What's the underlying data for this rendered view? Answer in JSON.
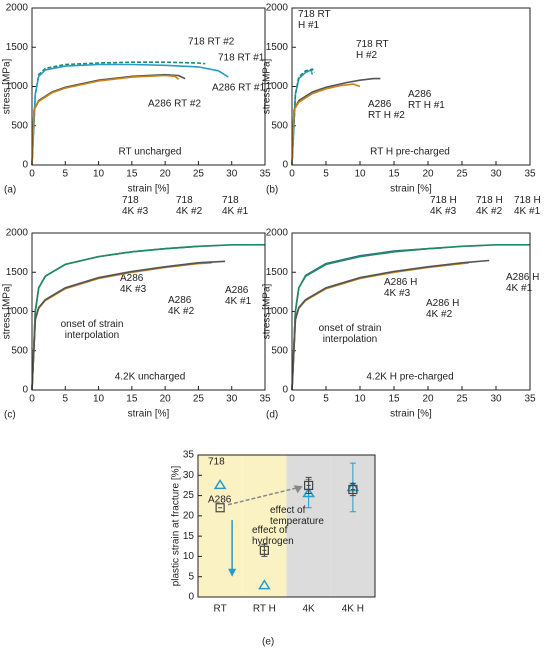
{
  "chart_data": [
    {
      "type": "line",
      "label": "(a)",
      "title": "RT uncharged",
      "x_label": "strain [%]",
      "y_label": "stress [MPa]",
      "xlim": [
        0,
        35
      ],
      "xticks": [
        0,
        5,
        10,
        15,
        20,
        25,
        30,
        35
      ],
      "ylim": [
        0,
        2000
      ],
      "yticks": [
        0,
        500,
        1000,
        1500,
        2000
      ],
      "series": [
        {
          "name": "718 RT #2",
          "color": "#1a8a6a",
          "linestyle": "dashed",
          "x": [
            0,
            0.5,
            1,
            2,
            5,
            10,
            15,
            20,
            25,
            26
          ],
          "values": [
            0,
            900,
            1150,
            1230,
            1280,
            1300,
            1310,
            1310,
            1300,
            1290
          ]
        },
        {
          "name": "718 RT #1",
          "color": "#2a9ac8",
          "linestyle": "solid",
          "x": [
            0,
            0.5,
            1,
            2,
            5,
            10,
            15,
            20,
            25,
            28,
            29.5
          ],
          "values": [
            0,
            900,
            1130,
            1210,
            1260,
            1280,
            1280,
            1270,
            1250,
            1200,
            1120
          ]
        },
        {
          "name": "A286 RT #1",
          "color": "#555555",
          "linestyle": "solid",
          "x": [
            0,
            0.3,
            1,
            3,
            5,
            10,
            15,
            20,
            22,
            23
          ],
          "values": [
            0,
            700,
            820,
            930,
            990,
            1080,
            1130,
            1150,
            1140,
            1100
          ]
        },
        {
          "name": "A286 RT #2",
          "color": "#c8841a",
          "linestyle": "solid",
          "x": [
            0,
            0.3,
            1,
            3,
            5,
            10,
            15,
            20,
            21.5,
            22
          ],
          "values": [
            0,
            700,
            810,
            920,
            980,
            1070,
            1120,
            1140,
            1130,
            1090
          ]
        }
      ]
    },
    {
      "type": "line",
      "label": "(b)",
      "title": "RT H pre-charged",
      "x_label": "strain [%]",
      "y_label": "stress [MPa]",
      "xlim": [
        0,
        35
      ],
      "xticks": [
        0,
        5,
        10,
        15,
        20,
        25,
        30,
        35
      ],
      "ylim": [
        0,
        2000
      ],
      "yticks": [
        0,
        500,
        1000,
        1500,
        2000
      ],
      "series": [
        {
          "name": "718 RT H #1",
          "color": "#2a9ac8",
          "linestyle": "solid",
          "x": [
            0,
            0.5,
            1,
            2,
            2.8,
            3
          ],
          "values": [
            0,
            900,
            1100,
            1180,
            1210,
            1150
          ]
        },
        {
          "name": "718 RT H #2",
          "color": "#1a8a6a",
          "linestyle": "dashed",
          "x": [
            0,
            0.5,
            1,
            2,
            3,
            3.3
          ],
          "values": [
            0,
            900,
            1120,
            1200,
            1220,
            1180
          ]
        },
        {
          "name": "A286 RT H #1",
          "color": "#555555",
          "linestyle": "solid",
          "x": [
            0,
            0.3,
            1,
            3,
            5,
            8,
            10,
            12,
            13
          ],
          "values": [
            0,
            700,
            820,
            930,
            990,
            1050,
            1080,
            1100,
            1100
          ]
        },
        {
          "name": "A286 RT H #2",
          "color": "#c8841a",
          "linestyle": "solid",
          "x": [
            0,
            0.3,
            1,
            3,
            5,
            7,
            9,
            10
          ],
          "values": [
            0,
            700,
            800,
            910,
            970,
            1010,
            1030,
            1000
          ]
        }
      ]
    },
    {
      "type": "line",
      "label": "(c)",
      "title": "4.2K uncharged",
      "x_label": "strain [%]",
      "y_label": "stress [MPa]",
      "xlim": [
        0,
        35
      ],
      "xticks": [
        0,
        5,
        10,
        15,
        20,
        25,
        30,
        35
      ],
      "ylim": [
        0,
        2000
      ],
      "yticks": [
        0,
        500,
        1000,
        1500,
        2000
      ],
      "annotations": [
        [
          "onset of strain",
          "interpolation"
        ]
      ],
      "series": [
        {
          "name": "718 4K #3",
          "color": "#1a5aa0",
          "linestyle": "solid",
          "x": [
            0,
            0.5,
            1,
            2,
            5,
            10,
            15,
            20,
            25
          ],
          "values": [
            0,
            1000,
            1300,
            1450,
            1600,
            1700,
            1760,
            1800,
            1830
          ]
        },
        {
          "name": "718 4K #2",
          "color": "#d4c020",
          "linestyle": "solid",
          "x": [
            0,
            0.5,
            1,
            2,
            5,
            10,
            15,
            20,
            25,
            28
          ],
          "values": [
            0,
            1000,
            1300,
            1450,
            1600,
            1700,
            1760,
            1800,
            1830,
            1840
          ]
        },
        {
          "name": "718 4K #1",
          "color": "#1a8a6a",
          "linestyle": "solid",
          "x": [
            0,
            0.5,
            1,
            2,
            5,
            10,
            15,
            20,
            25,
            30,
            35
          ],
          "values": [
            0,
            1000,
            1300,
            1450,
            1600,
            1700,
            1760,
            1800,
            1830,
            1850,
            1850
          ]
        },
        {
          "name": "A286 4K #3",
          "color": "#3aa8d8",
          "linestyle": "solid",
          "x": [
            0,
            0.5,
            1,
            2,
            5,
            10,
            15,
            20,
            25,
            27
          ],
          "values": [
            0,
            900,
            1050,
            1150,
            1300,
            1430,
            1510,
            1570,
            1620,
            1630
          ]
        },
        {
          "name": "A286 4K #2",
          "color": "#c8841a",
          "linestyle": "solid",
          "x": [
            0,
            0.5,
            1,
            2,
            5,
            10,
            15,
            20,
            25,
            27
          ],
          "values": [
            0,
            900,
            1040,
            1140,
            1290,
            1420,
            1500,
            1560,
            1610,
            1620
          ]
        },
        {
          "name": "A286 4K #1",
          "color": "#555555",
          "linestyle": "solid",
          "x": [
            0,
            0.5,
            1,
            2,
            5,
            10,
            15,
            20,
            25,
            29
          ],
          "values": [
            0,
            900,
            1050,
            1150,
            1300,
            1430,
            1510,
            1570,
            1620,
            1640
          ]
        }
      ]
    },
    {
      "type": "line",
      "label": "(d)",
      "title": "4.2K H pre-charged",
      "x_label": "strain [%]",
      "y_label": "stress [MPa]",
      "xlim": [
        0,
        35
      ],
      "xticks": [
        0,
        5,
        10,
        15,
        20,
        25,
        30,
        35
      ],
      "ylim": [
        0,
        2000
      ],
      "yticks": [
        0,
        500,
        1000,
        1500,
        2000
      ],
      "annotations": [
        [
          "onset of strain",
          "interpolation"
        ]
      ],
      "series": [
        {
          "name": "718 H 4K #3",
          "color": "#1a5aa0",
          "linestyle": "solid",
          "x": [
            0,
            0.5,
            1,
            2,
            5,
            10,
            15,
            20,
            22
          ],
          "values": [
            0,
            1000,
            1300,
            1460,
            1610,
            1710,
            1770,
            1800,
            1810
          ]
        },
        {
          "name": "718 H 4K #2",
          "color": "#d4c020",
          "linestyle": "solid",
          "x": [
            0,
            0.5,
            1,
            2,
            5,
            10,
            15,
            20,
            25,
            28
          ],
          "values": [
            0,
            1000,
            1300,
            1450,
            1600,
            1700,
            1760,
            1800,
            1830,
            1840
          ]
        },
        {
          "name": "718 H 4K #1",
          "color": "#1a8a6a",
          "linestyle": "solid",
          "x": [
            0,
            0.5,
            1,
            2,
            5,
            10,
            15,
            20,
            25,
            30,
            35
          ],
          "values": [
            0,
            1000,
            1300,
            1450,
            1600,
            1700,
            1760,
            1800,
            1830,
            1850,
            1850
          ]
        },
        {
          "name": "A286 H 4K #3",
          "color": "#3aa8d8",
          "linestyle": "solid",
          "x": [
            0,
            0.5,
            1,
            2,
            5,
            10,
            15,
            20,
            25
          ],
          "values": [
            0,
            900,
            1050,
            1150,
            1300,
            1430,
            1510,
            1570,
            1610
          ]
        },
        {
          "name": "A286 H 4K #2",
          "color": "#c8841a",
          "linestyle": "solid",
          "x": [
            0,
            0.5,
            1,
            2,
            5,
            10,
            15,
            20,
            26
          ],
          "values": [
            0,
            900,
            1040,
            1140,
            1290,
            1420,
            1500,
            1560,
            1620
          ]
        },
        {
          "name": "A286 H 4K #1",
          "color": "#555555",
          "linestyle": "solid",
          "x": [
            0,
            0.5,
            1,
            2,
            5,
            10,
            15,
            20,
            25,
            29
          ],
          "values": [
            0,
            900,
            1050,
            1150,
            1300,
            1430,
            1510,
            1570,
            1620,
            1650
          ]
        }
      ]
    },
    {
      "type": "scatter",
      "label": "(e)",
      "y_label": "plastic strain at fracture [%]",
      "categories": [
        "RT",
        "RT H",
        "4K",
        "4K H"
      ],
      "background_colors": [
        "#fbf2c4",
        "#fbf2c4",
        "#dcdcdc",
        "#dcdcdc"
      ],
      "ylim": [
        0,
        35
      ],
      "yticks": [
        0,
        5,
        10,
        15,
        20,
        25,
        30,
        35
      ],
      "annotations": [
        [
          "effect of",
          "temperature"
        ],
        [
          "effect of",
          "hydrogen"
        ]
      ],
      "series": [
        {
          "name": "718",
          "color": "#2a9ac8",
          "marker": "triangle",
          "values": [
            27.5,
            2.8,
            25.5,
            27
          ],
          "errors": [
            null,
            null,
            3.5,
            6
          ]
        },
        {
          "name": "A286",
          "color": "#444444",
          "marker": "square",
          "values": [
            22,
            11.5,
            27.5,
            26.5
          ],
          "errors": [
            null,
            1.5,
            2,
            1.5
          ]
        }
      ]
    }
  ]
}
